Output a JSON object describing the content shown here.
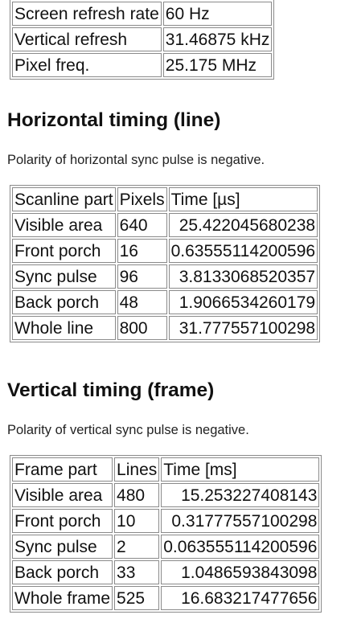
{
  "general": {
    "rows": [
      {
        "label": "Screen refresh rate",
        "value": "60 Hz"
      },
      {
        "label": "Vertical refresh",
        "value": "31.46875 kHz"
      },
      {
        "label": "Pixel freq.",
        "value": "25.175 MHz"
      }
    ]
  },
  "horizontal": {
    "heading": "Horizontal timing (line)",
    "note": "Polarity of horizontal sync pulse is negative.",
    "headers": [
      "Scanline part",
      "Pixels",
      "Time [µs]"
    ],
    "rows": [
      [
        "Visible area",
        "640",
        "25.422045680238"
      ],
      [
        "Front porch",
        "16",
        "0.63555114200596"
      ],
      [
        "Sync pulse",
        "96",
        "3.8133068520357"
      ],
      [
        "Back porch",
        "48",
        "1.9066534260179"
      ],
      [
        "Whole line",
        "800",
        "31.777557100298"
      ]
    ]
  },
  "vertical": {
    "heading": "Vertical timing (frame)",
    "note": "Polarity of vertical sync pulse is negative.",
    "headers": [
      "Frame part",
      "Lines",
      "Time [ms]"
    ],
    "rows": [
      [
        "Visible area",
        "480",
        "15.253227408143"
      ],
      [
        "Front porch",
        "10",
        "0.31777557100298"
      ],
      [
        "Sync pulse",
        "2",
        "0.063555114200596"
      ],
      [
        "Back porch",
        "33",
        "1.0486593843098"
      ],
      [
        "Whole frame",
        "525",
        "16.683217477656"
      ]
    ]
  }
}
